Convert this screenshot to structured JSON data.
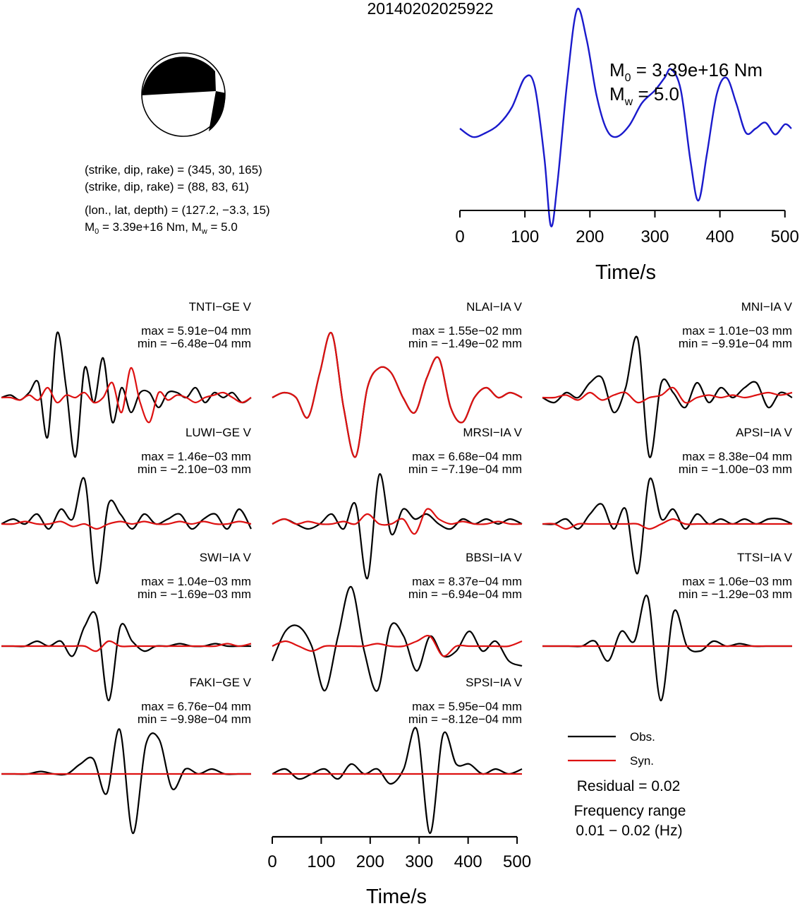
{
  "title": "20140202025922",
  "mechanism": {
    "line1": "(strike, dip, rake) = (345, 30, 165)",
    "line2": "(strike, dip, rake) = (88, 83, 61)",
    "line3": "(lon., lat, depth) = (127.2, −3.3, 15)",
    "m0_text": "M",
    "m0_sub": "0",
    "m0_rest": " = 3.39e+16 Nm, M",
    "mw_sub": "w",
    "mw_rest": " = 5.0"
  },
  "stf": {
    "m0_label": "M",
    "m0_sub": "0",
    "m0_value": " = 3.39e+16 Nm",
    "mw_label": "M",
    "mw_sub": "w",
    "mw_value": " = 5.0",
    "xlabel": "Time/s",
    "xticks": [
      "0",
      "100",
      "200",
      "300",
      "400",
      "500"
    ]
  },
  "waveform_axis": {
    "xlabel": "Time/s",
    "xticks": [
      "0",
      "100",
      "200",
      "300",
      "400",
      "500"
    ]
  },
  "legend": {
    "obs": "Obs.",
    "syn": "Syn.",
    "residual": "Residual = 0.02",
    "freq_title": "Frequency range",
    "freq_value": "0.01 − 0.02 (Hz)"
  },
  "colors": {
    "obs": "#000000",
    "syn": "#dd1111",
    "stf": "#1a1acc"
  },
  "stations": [
    {
      "name": "TNTI−GE V",
      "max": "max = 5.91e−04 mm",
      "min": "min = −6.48e−04 mm"
    },
    {
      "name": "NLAI−IA V",
      "max": "max = 1.55e−02 mm",
      "min": "min = −1.49e−02 mm"
    },
    {
      "name": "MNI−IA V",
      "max": "max = 1.01e−03 mm",
      "min": "min = −9.91e−04 mm"
    },
    {
      "name": "LUWI−GE V",
      "max": "max = 1.46e−03 mm",
      "min": "min = −2.10e−03 mm"
    },
    {
      "name": "MRSI−IA V",
      "max": "max = 6.68e−04 mm",
      "min": "min = −7.19e−04 mm"
    },
    {
      "name": "APSI−IA V",
      "max": "max = 8.38e−04 mm",
      "min": "min = −1.00e−03 mm"
    },
    {
      "name": "SWI−IA V",
      "max": "max = 1.04e−03 mm",
      "min": "min = −1.69e−03 mm"
    },
    {
      "name": "BBSI−IA V",
      "max": "max = 8.37e−04 mm",
      "min": "min = −6.94e−04 mm"
    },
    {
      "name": "TTSI−IA V",
      "max": "max = 1.06e−03 mm",
      "min": "min = −1.29e−03 mm"
    },
    {
      "name": "FAKI−GE V",
      "max": "max = 6.76e−04 mm",
      "min": "min = −9.98e−04 mm"
    },
    {
      "name": "SPSI−IA V",
      "max": "max = 5.95e−04 mm",
      "min": "min = −8.12e−04 mm"
    }
  ],
  "chart_data": [
    {
      "type": "line",
      "series": [
        {
          "x": [
            0,
            20,
            40,
            60,
            80,
            100,
            115,
            130,
            140,
            150,
            165,
            180,
            195,
            210,
            225,
            240,
            260,
            280,
            300,
            315,
            325,
            340,
            355,
            367,
            380,
            395,
            410,
            425,
            440,
            455,
            470,
            485,
            500,
            510
          ],
          "values": [
            0.55,
            0.45,
            0.5,
            0.6,
            0.8,
            1.15,
            1.05,
            0.2,
            -0.6,
            -0.1,
            1.1,
            1.95,
            1.6,
            0.95,
            0.55,
            0.45,
            0.58,
            0.85,
            1.0,
            1.15,
            1.25,
            1.0,
            0.15,
            -0.3,
            0.25,
            0.95,
            1.15,
            0.85,
            0.5,
            0.55,
            0.62,
            0.48,
            0.6,
            0.55
          ]
        }
      ],
      "xlim": [
        0,
        510
      ]
    }
  ]
}
